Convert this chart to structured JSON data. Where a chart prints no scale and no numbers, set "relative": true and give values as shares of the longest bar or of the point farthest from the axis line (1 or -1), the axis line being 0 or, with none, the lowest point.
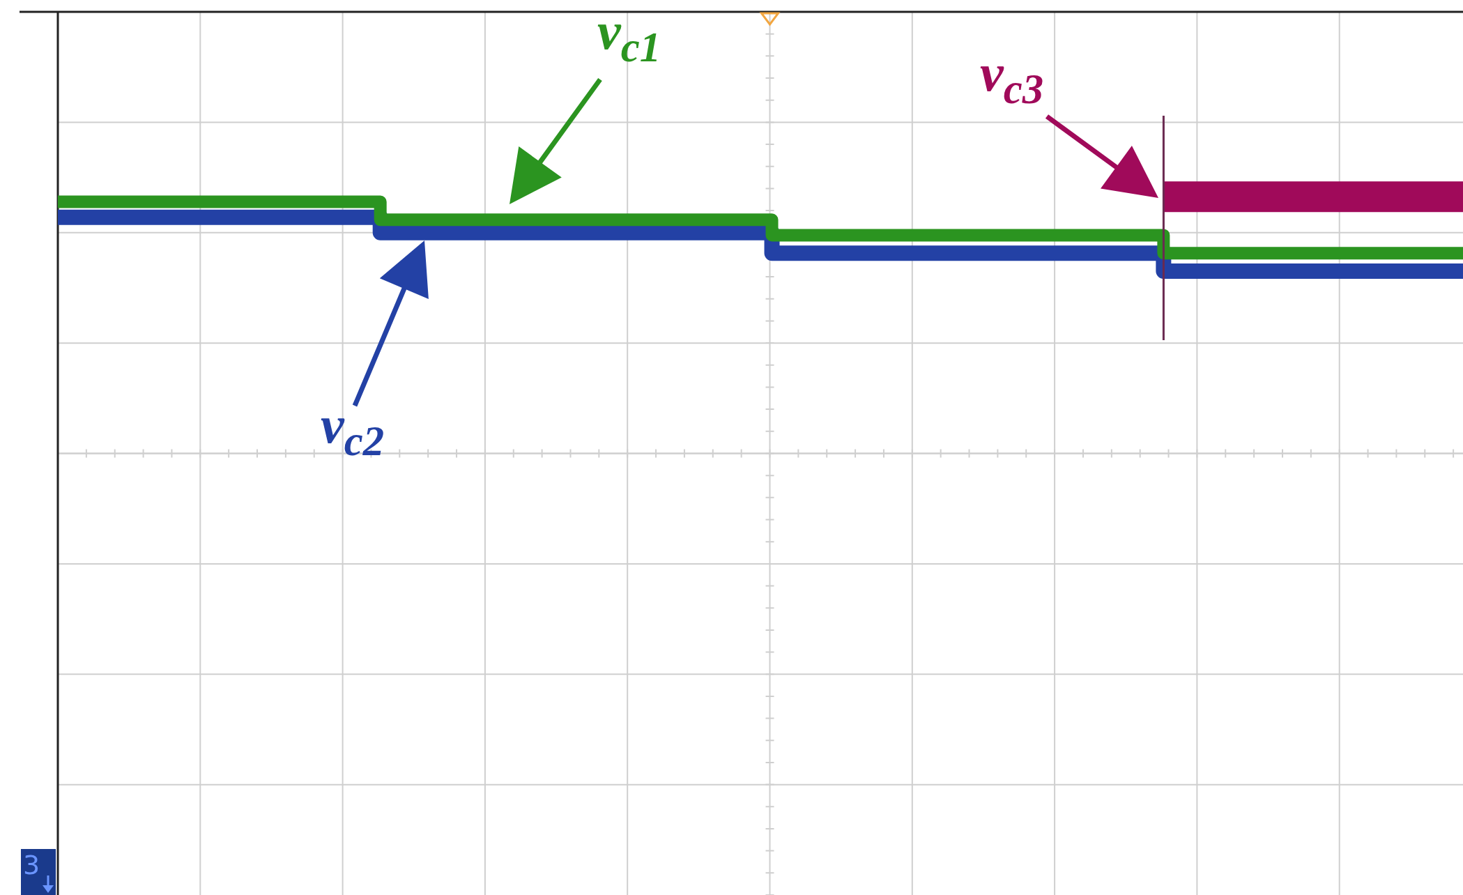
{
  "chart_data": {
    "type": "step",
    "relative": true,
    "grid": true,
    "marker": "none",
    "annotations": [
      "3"
    ],
    "categories": [
      null,
      null,
      null,
      null,
      null,
      null,
      null,
      null,
      null,
      null,
      null,
      null,
      null,
      null,
      null,
      null,
      null,
      null,
      null,
      null,
      null,
      null,
      null,
      null,
      null,
      null,
      null,
      null,
      null,
      null,
      null,
      null,
      null,
      null,
      null,
      null,
      null,
      null,
      null,
      null,
      null,
      null,
      null,
      null,
      null,
      null,
      null,
      null,
      null,
      null,
      null,
      null,
      null,
      null,
      null,
      null,
      null,
      null,
      null,
      null,
      null,
      null
    ],
    "series": [
      {
        "name": "v$_{c1}$",
        "color": "#2b9420",
        "values": [
          0.98,
          0.98,
          0.98,
          0.98,
          0.98,
          0.98,
          0.98,
          0.98,
          0.98,
          0.98,
          0.98,
          0.98,
          0.98,
          0.98,
          0.91,
          0.91,
          0.91,
          0.91,
          0.91,
          0.91,
          0.91,
          0.91,
          0.91,
          0.91,
          0.91,
          0.91,
          0.91,
          0.91,
          0.91,
          0.91,
          0.91,
          0.85,
          0.85,
          0.85,
          0.85,
          0.85,
          0.85,
          0.85,
          0.85,
          0.85,
          0.85,
          0.85,
          0.85,
          0.85,
          0.85,
          0.85,
          0.85,
          0.85,
          0.78,
          0.78,
          0.78,
          0.78,
          0.78,
          0.78,
          0.78,
          0.78,
          0.78,
          0.78,
          0.78,
          0.78,
          0.78,
          0.78
        ]
      },
      {
        "name": "v$_{c2}$",
        "color": "#2341a5",
        "values": [
          0.92,
          0.92,
          0.92,
          0.92,
          0.92,
          0.92,
          0.92,
          0.92,
          0.92,
          0.92,
          0.92,
          0.92,
          0.92,
          0.92,
          0.86,
          0.86,
          0.86,
          0.86,
          0.86,
          0.86,
          0.86,
          0.86,
          0.86,
          0.86,
          0.86,
          0.86,
          0.86,
          0.86,
          0.86,
          0.86,
          0.86,
          0.78,
          0.78,
          0.78,
          0.78,
          0.78,
          0.78,
          0.78,
          0.78,
          0.78,
          0.78,
          0.78,
          0.78,
          0.78,
          0.78,
          0.78,
          0.78,
          0.78,
          0.71,
          0.71,
          0.71,
          0.71,
          0.71,
          0.71,
          0.71,
          0.71,
          0.71,
          0.71,
          0.71,
          0.71,
          0.71,
          0.71
        ]
      },
      {
        "name": "v$_{c3}$",
        "color": "#a00a5a",
        "values": [
          null,
          null,
          null,
          null,
          null,
          null,
          null,
          null,
          null,
          null,
          null,
          null,
          null,
          null,
          null,
          null,
          null,
          null,
          null,
          null,
          null,
          null,
          null,
          null,
          null,
          null,
          null,
          null,
          null,
          null,
          null,
          null,
          null,
          null,
          null,
          null,
          null,
          null,
          null,
          null,
          null,
          null,
          null,
          null,
          null,
          null,
          null,
          null,
          1,
          1,
          1,
          1,
          1,
          1,
          1,
          1,
          1,
          1,
          1,
          1,
          1,
          1
        ]
      }
    ]
  }
}
